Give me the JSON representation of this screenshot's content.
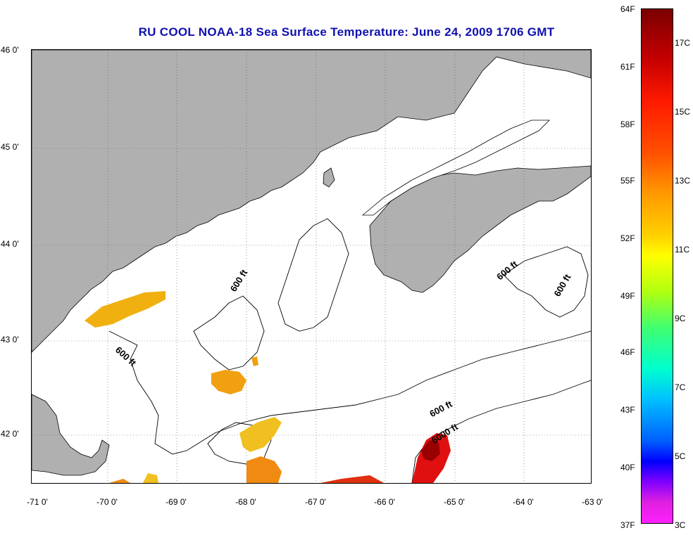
{
  "title": "RU COOL  NOAA-18  Sea Surface Temperature:  June 24, 2009 1706 GMT",
  "latitude_labels": [
    "46 0'",
    "45 0'",
    "44 0'",
    "43 0'",
    "42 0'"
  ],
  "longitude_labels": [
    "-71 0'",
    "-70 0'",
    "-69 0'",
    "-68 0'",
    "-67 0'",
    "-66 0'",
    "-65 0'",
    "-64 0'",
    "-63 0'"
  ],
  "contour_labels": [
    "600 ft",
    "600 ft",
    "600 ft",
    "600 ft",
    "600 ft",
    "6000 ft"
  ],
  "colorbar": {
    "fahrenheit_labels": [
      "64F",
      "61F",
      "58F",
      "55F",
      "52F",
      "49F",
      "46F",
      "43F",
      "40F",
      "37F"
    ],
    "celsius_labels": [
      "17C",
      "15C",
      "13C",
      "11C",
      "9C",
      "7C",
      "5C",
      "3C"
    ]
  },
  "colors": {
    "land": "#b0b0b0",
    "title": "#1010b0",
    "water": "#ffffff"
  }
}
